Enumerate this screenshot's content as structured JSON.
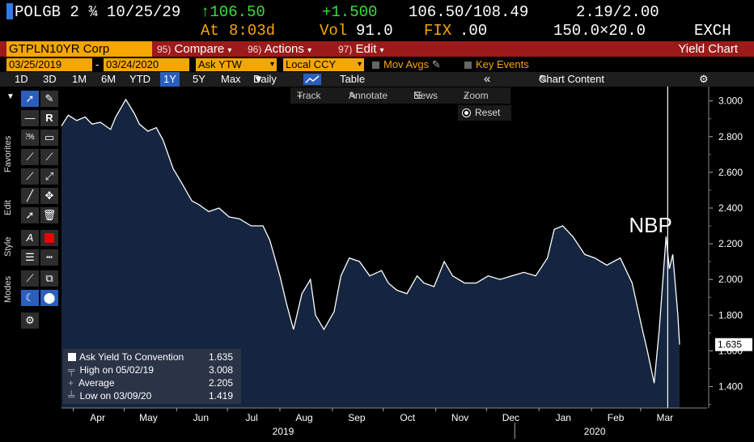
{
  "quote": {
    "ticker": "POLGB 2 ¾ 10/25/29",
    "price": "↑106.50",
    "change": "+1.500",
    "bid_ask": "106.50/108.49",
    "yields": "2.19/2.00",
    "time_label": "At",
    "time": "8:03d",
    "vol_label": "Vol",
    "vol": "91.0",
    "fix_label": "FIX",
    "fix": ".00",
    "size": "150.0×20.0",
    "exch": "EXCH"
  },
  "cmdbar": {
    "security": "GTPLN10YR Corp",
    "compare_num": "95)",
    "compare": "Compare",
    "actions_num": "96)",
    "actions": "Actions",
    "edit_num": "97)",
    "edit": "Edit",
    "title": "Yield Chart"
  },
  "inputs": {
    "start_date": "03/25/2019",
    "dash": "-",
    "end_date": "03/24/2020",
    "field": "Ask YTW",
    "currency": "Local CCY",
    "mov_avgs": "Mov Avgs",
    "key_events": "Key Events"
  },
  "periods": {
    "items": [
      "1D",
      "3D",
      "1M",
      "6M",
      "YTD",
      "1Y",
      "5Y",
      "Max"
    ],
    "active": "1Y",
    "frequency": "Daily",
    "table": "Table",
    "chart_content": "Chart Content"
  },
  "toolbar": {
    "favorites": "Favorites",
    "edit": "Edit",
    "style": "Style",
    "modes": "Modes"
  },
  "charttools": {
    "track": "Track",
    "annotate": "Annotate",
    "news": "News",
    "zoom": "Zoom",
    "reset": "Reset"
  },
  "legend": {
    "series": "Ask Yield To Convention",
    "last": "1.635",
    "high_label": "High on 05/02/19",
    "high": "3.008",
    "avg_label": "Average",
    "avg": "2.205",
    "low_label": "Low on 03/09/20",
    "low": "1.419"
  },
  "colors": {
    "amber": "#f7a600",
    "bar_red": "#9b1b1b",
    "area_fill": "#15253f",
    "line": "#ffffff",
    "active_blue": "#2a5ebd"
  },
  "chart_data": {
    "type": "area",
    "series": [
      {
        "name": "Ask Yield To Convention",
        "points": [
          [
            "2019-03-25",
            2.86
          ],
          [
            "2019-03-29",
            2.92
          ],
          [
            "2019-04-03",
            2.89
          ],
          [
            "2019-04-08",
            2.91
          ],
          [
            "2019-04-12",
            2.87
          ],
          [
            "2019-04-17",
            2.88
          ],
          [
            "2019-04-23",
            2.84
          ],
          [
            "2019-04-26",
            2.91
          ],
          [
            "2019-05-02",
            3.008
          ],
          [
            "2019-05-07",
            2.93
          ],
          [
            "2019-05-10",
            2.87
          ],
          [
            "2019-05-15",
            2.83
          ],
          [
            "2019-05-20",
            2.85
          ],
          [
            "2019-05-24",
            2.78
          ],
          [
            "2019-05-30",
            2.62
          ],
          [
            "2019-06-04",
            2.54
          ],
          [
            "2019-06-10",
            2.44
          ],
          [
            "2019-06-14",
            2.42
          ],
          [
            "2019-06-20",
            2.38
          ],
          [
            "2019-06-26",
            2.4
          ],
          [
            "2019-07-02",
            2.35
          ],
          [
            "2019-07-08",
            2.34
          ],
          [
            "2019-07-15",
            2.3
          ],
          [
            "2019-07-22",
            2.3
          ],
          [
            "2019-07-26",
            2.22
          ],
          [
            "2019-08-01",
            2.02
          ],
          [
            "2019-08-05",
            1.86
          ],
          [
            "2019-08-09",
            1.72
          ],
          [
            "2019-08-14",
            1.92
          ],
          [
            "2019-08-19",
            2.0
          ],
          [
            "2019-08-22",
            1.8
          ],
          [
            "2019-08-27",
            1.72
          ],
          [
            "2019-09-02",
            1.82
          ],
          [
            "2019-09-06",
            2.02
          ],
          [
            "2019-09-11",
            2.12
          ],
          [
            "2019-09-17",
            2.1
          ],
          [
            "2019-09-23",
            2.02
          ],
          [
            "2019-09-30",
            2.05
          ],
          [
            "2019-10-04",
            1.98
          ],
          [
            "2019-10-09",
            1.94
          ],
          [
            "2019-10-15",
            1.92
          ],
          [
            "2019-10-21",
            2.02
          ],
          [
            "2019-10-25",
            1.98
          ],
          [
            "2019-10-31",
            1.96
          ],
          [
            "2019-11-06",
            2.1
          ],
          [
            "2019-11-11",
            2.02
          ],
          [
            "2019-11-18",
            1.98
          ],
          [
            "2019-11-25",
            1.98
          ],
          [
            "2019-12-02",
            2.02
          ],
          [
            "2019-12-09",
            2.0
          ],
          [
            "2019-12-16",
            2.02
          ],
          [
            "2019-12-23",
            2.04
          ],
          [
            "2019-12-30",
            2.02
          ],
          [
            "2020-01-06",
            2.12
          ],
          [
            "2020-01-10",
            2.28
          ],
          [
            "2020-01-15",
            2.3
          ],
          [
            "2020-01-21",
            2.24
          ],
          [
            "2020-01-28",
            2.14
          ],
          [
            "2020-02-03",
            2.12
          ],
          [
            "2020-02-10",
            2.08
          ],
          [
            "2020-02-18",
            2.12
          ],
          [
            "2020-02-25",
            1.98
          ],
          [
            "2020-03-02",
            1.72
          ],
          [
            "2020-03-05",
            1.6
          ],
          [
            "2020-03-09",
            1.419
          ],
          [
            "2020-03-12",
            1.72
          ],
          [
            "2020-03-16",
            2.24
          ],
          [
            "2020-03-18",
            2.06
          ],
          [
            "2020-03-20",
            2.14
          ],
          [
            "2020-03-23",
            1.8
          ],
          [
            "2020-03-24",
            1.635
          ]
        ]
      }
    ],
    "ylim": [
      1.28,
      3.08
    ],
    "y_ticks": [
      1.4,
      1.6,
      1.8,
      2.0,
      2.2,
      2.4,
      2.6,
      2.8,
      3.0
    ],
    "y_tick_labels": [
      "1.400",
      "1.600",
      "1.800",
      "2.000",
      "2.200",
      "2.400",
      "2.600",
      "2.800",
      "3.000"
    ],
    "x_range": [
      "2019-03-25",
      "2020-03-24"
    ],
    "x_months": [
      [
        "2019-04-01",
        "Apr"
      ],
      [
        "2019-05-01",
        "May"
      ],
      [
        "2019-06-01",
        "Jun"
      ],
      [
        "2019-07-01",
        "Jul"
      ],
      [
        "2019-08-01",
        "Aug"
      ],
      [
        "2019-09-01",
        "Sep"
      ],
      [
        "2019-10-01",
        "Oct"
      ],
      [
        "2019-11-01",
        "Nov"
      ],
      [
        "2019-12-01",
        "Dec"
      ],
      [
        "2020-01-01",
        "Jan"
      ],
      [
        "2020-02-01",
        "Feb"
      ],
      [
        "2020-03-01",
        "Mar"
      ]
    ],
    "years": [
      [
        "2019-08-01",
        "2019"
      ],
      [
        "2020-02-01",
        "2020"
      ]
    ],
    "last_value_label": "1.635",
    "annotation": {
      "text": "NBP",
      "date": "2020-03-17"
    },
    "legend_position": "bottom-left",
    "grid": false
  }
}
